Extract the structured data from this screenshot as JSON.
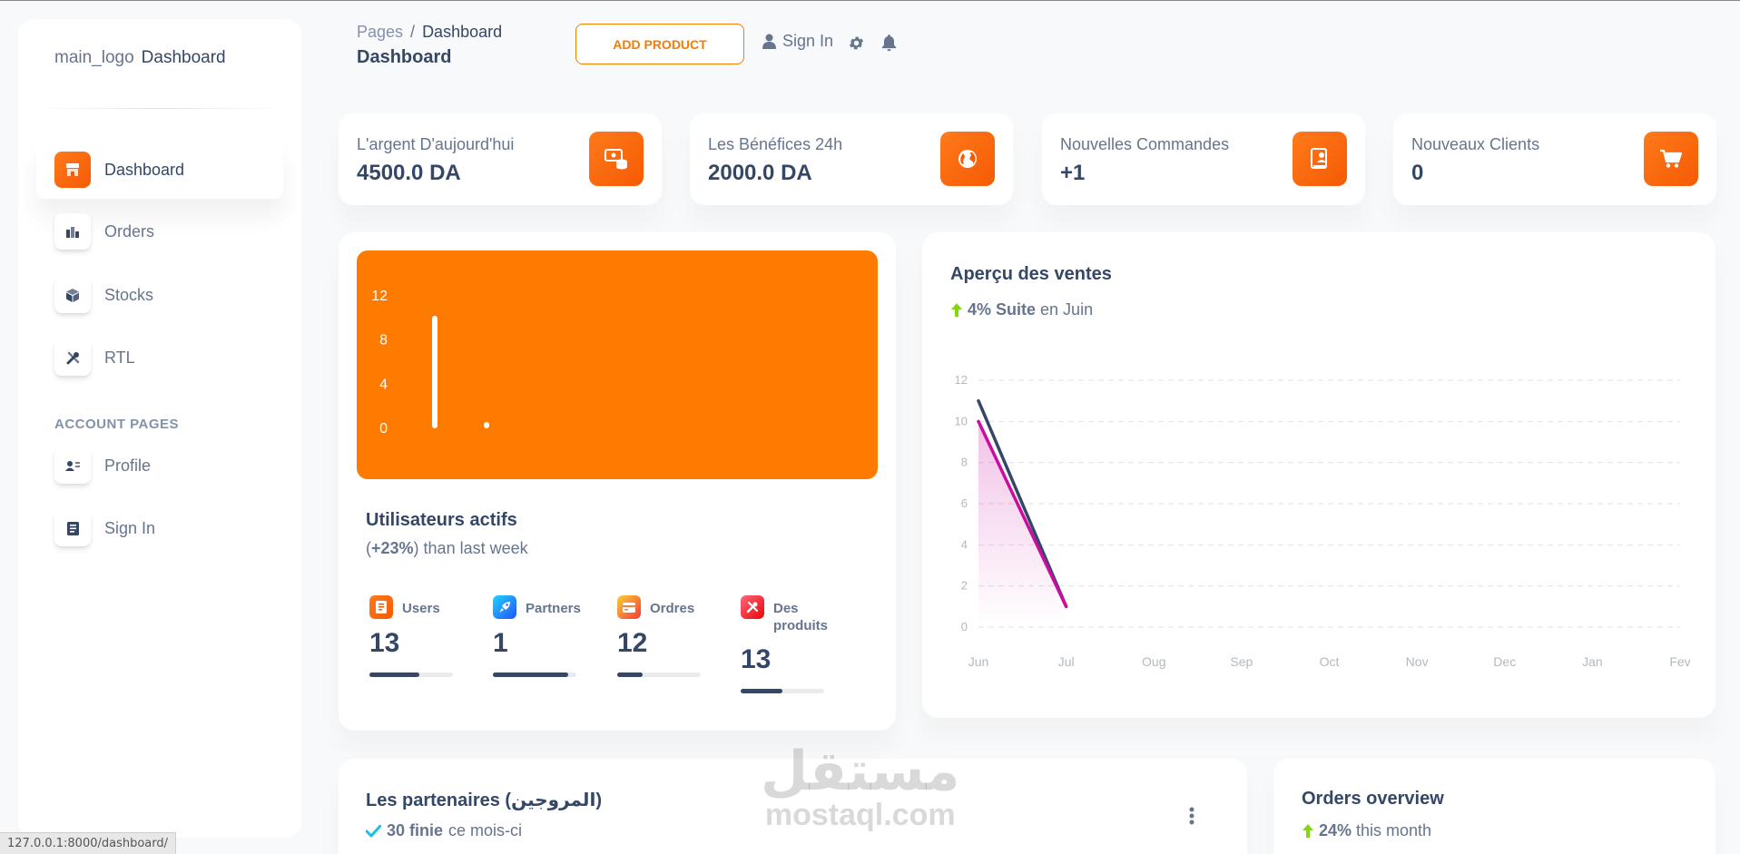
{
  "brand": {
    "logo_alt": "main_logo",
    "name": "Dashboard"
  },
  "sidebar": {
    "items": [
      {
        "label": "Dashboard",
        "icon": "shop-icon",
        "active": true
      },
      {
        "label": "Orders",
        "icon": "office-icon"
      },
      {
        "label": "Stocks",
        "icon": "box-icon"
      },
      {
        "label": "RTL",
        "icon": "tools-icon"
      }
    ],
    "section": "ACCOUNT PAGES",
    "account_items": [
      {
        "label": "Profile",
        "icon": "profile-icon"
      },
      {
        "label": "Sign In",
        "icon": "document-icon"
      }
    ]
  },
  "header": {
    "breadcrumb_root": "Pages",
    "breadcrumb_sep": "/",
    "breadcrumb_current": "Dashboard",
    "title": "Dashboard",
    "add_button": "ADD PRODUCT",
    "sign_in": "Sign In"
  },
  "stats": [
    {
      "label": "L'argent D'aujourd'hui",
      "value": "4500.0 DA",
      "icon": "money-icon"
    },
    {
      "label": "Les Bénéfices 24h",
      "value": "2000.0 DA",
      "icon": "globe-icon"
    },
    {
      "label": "Nouvelles Commandes",
      "value": "+1",
      "icon": "document-icon"
    },
    {
      "label": "Nouveaux Clients",
      "value": "0",
      "icon": "cart-icon"
    }
  ],
  "active_users": {
    "title": "Utilisateurs actifs",
    "subtitle_prefix": "(",
    "subtitle_pct": "+23%",
    "subtitle_suffix": ") than last week",
    "metrics": [
      {
        "label": "Users",
        "value": "13",
        "progress": 0.6,
        "color": "#f55a05",
        "icon": "document-icon"
      },
      {
        "label": "Partners",
        "value": "1",
        "progress": 0.9,
        "color": "#2196f3",
        "icon": "rocket-icon"
      },
      {
        "label": "Ordres",
        "value": "12",
        "progress": 0.3,
        "color": "#fb8c00",
        "icon": "card-icon"
      },
      {
        "label": "Des produits",
        "value": "13",
        "progress": 0.5,
        "color": "#ea0606",
        "icon": "tools-icon"
      }
    ]
  },
  "sales_overview": {
    "title": "Aperçu des ventes",
    "trend": "4% Suite",
    "trend_suffix": "en Juin"
  },
  "partners": {
    "title": "Les partenaires (المروجين)",
    "sub_bold": "30 finie",
    "sub_rest": "ce mois-ci"
  },
  "orders_overview": {
    "title": "Orders overview",
    "sub_bold": "24%",
    "sub_rest": "this month"
  },
  "status_url": "127.0.0.1:8000/dashboard/",
  "watermark": {
    "arabic": "مستقل",
    "latin": "mostaql.com"
  },
  "colors": {
    "accent": "#f57c00",
    "text": "#344767",
    "muted": "#67748e",
    "chart_orange": "#ff7b00",
    "line_dark": "#344767",
    "line_pink": "#cb0c9f"
  },
  "chart_data": [
    {
      "type": "bar",
      "categories": [
        "",
        ""
      ],
      "values": [
        10.2,
        0.3
      ],
      "yticks": [
        0,
        4,
        8,
        12
      ],
      "ylim": [
        0,
        12
      ],
      "grid": false
    },
    {
      "type": "line",
      "title": "Aperçu des ventes",
      "x": [
        "Jun",
        "Jul",
        "Oug",
        "Sep",
        "Oct",
        "Nov",
        "Dec",
        "Jan",
        "Fev"
      ],
      "series": [
        {
          "values": [
            11,
            1,
            null,
            null,
            null,
            null,
            null,
            null,
            null
          ],
          "color": "#344767"
        },
        {
          "values": [
            10,
            1,
            null,
            null,
            null,
            null,
            null,
            null,
            null
          ],
          "color": "#cb0c9f"
        }
      ],
      "yticks": [
        0,
        2,
        4,
        6,
        8,
        10,
        12
      ],
      "ylim": [
        0,
        12
      ],
      "grid": true
    }
  ]
}
